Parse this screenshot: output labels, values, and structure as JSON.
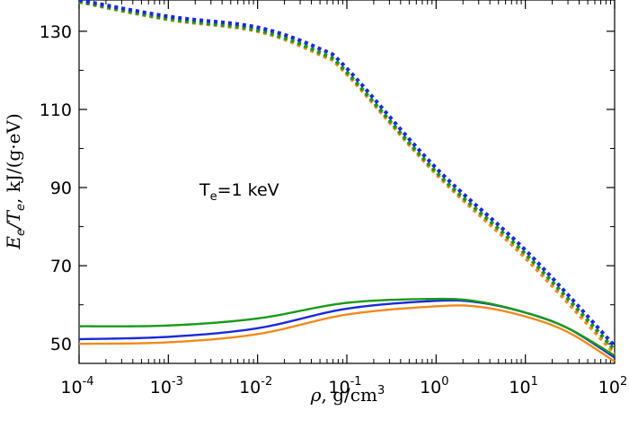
{
  "chart_data": {
    "type": "line",
    "xscale": "log",
    "xlim": [
      0.0001,
      100
    ],
    "ylim": [
      45,
      138
    ],
    "grid": false,
    "legend": "none",
    "xlabel": {
      "symbol": "ρ",
      "rest": ", g/cm",
      "sup": "3"
    },
    "ylabel": {
      "part1": "E",
      "sub1": "e",
      "part2": "/T",
      "sub2": "e",
      "rest": ", kJ/(g·eV)"
    },
    "annotation": {
      "main": "T",
      "sub": "e",
      "rest": "=1 keV"
    },
    "y_ticks": [
      "50",
      "70",
      "90",
      "110",
      "130"
    ],
    "x_ticks": [
      {
        "base": "10",
        "exp": "-4"
      },
      {
        "base": "10",
        "exp": "-3"
      },
      {
        "base": "10",
        "exp": "-2"
      },
      {
        "base": "10",
        "exp": "-1"
      },
      {
        "base": "10",
        "exp": "0"
      },
      {
        "base": "10",
        "exp": "1"
      },
      {
        "base": "10",
        "exp": "2"
      }
    ],
    "series": [
      {
        "color": "#f08a1c",
        "style": "dotted",
        "x": [
          0.0001,
          0.001,
          0.01,
          0.05,
          0.1,
          1,
          10,
          100
        ],
        "y": [
          137.5,
          133.0,
          130.0,
          124.0,
          119.0,
          93.5,
          72.0,
          47.5
        ]
      },
      {
        "color": "#1a9a1a",
        "style": "dotted",
        "x": [
          0.0001,
          0.001,
          0.01,
          0.05,
          0.1,
          1,
          10,
          100
        ],
        "y": [
          137.6,
          133.2,
          130.3,
          124.5,
          119.5,
          94.0,
          73.0,
          48.5
        ]
      },
      {
        "color": "#1a2ad8",
        "style": "dotted",
        "x": [
          0.0001,
          0.001,
          0.01,
          0.05,
          0.1,
          1,
          10,
          100
        ],
        "y": [
          138.0,
          133.8,
          131.0,
          125.5,
          120.5,
          95.0,
          74.0,
          49.5
        ]
      },
      {
        "color": "#f08a1c",
        "style": "solid",
        "x": [
          0.0001,
          0.001,
          0.01,
          0.1,
          1,
          3,
          10,
          30,
          100
        ],
        "y": [
          50.0,
          50.4,
          52.5,
          57.5,
          59.6,
          59.5,
          57.0,
          53.0,
          45.5
        ]
      },
      {
        "color": "#1a2ad8",
        "style": "solid",
        "x": [
          0.0001,
          0.001,
          0.01,
          0.1,
          1,
          3,
          10,
          30,
          100
        ],
        "y": [
          51.2,
          51.8,
          54.0,
          59.0,
          61.0,
          60.6,
          58.0,
          54.0,
          46.5
        ]
      },
      {
        "color": "#1a9a1a",
        "style": "solid",
        "x": [
          0.0001,
          0.001,
          0.01,
          0.1,
          1,
          3,
          10,
          30,
          100
        ],
        "y": [
          54.5,
          54.7,
          56.5,
          60.5,
          61.5,
          60.8,
          58.0,
          54.0,
          47.0
        ]
      }
    ]
  }
}
